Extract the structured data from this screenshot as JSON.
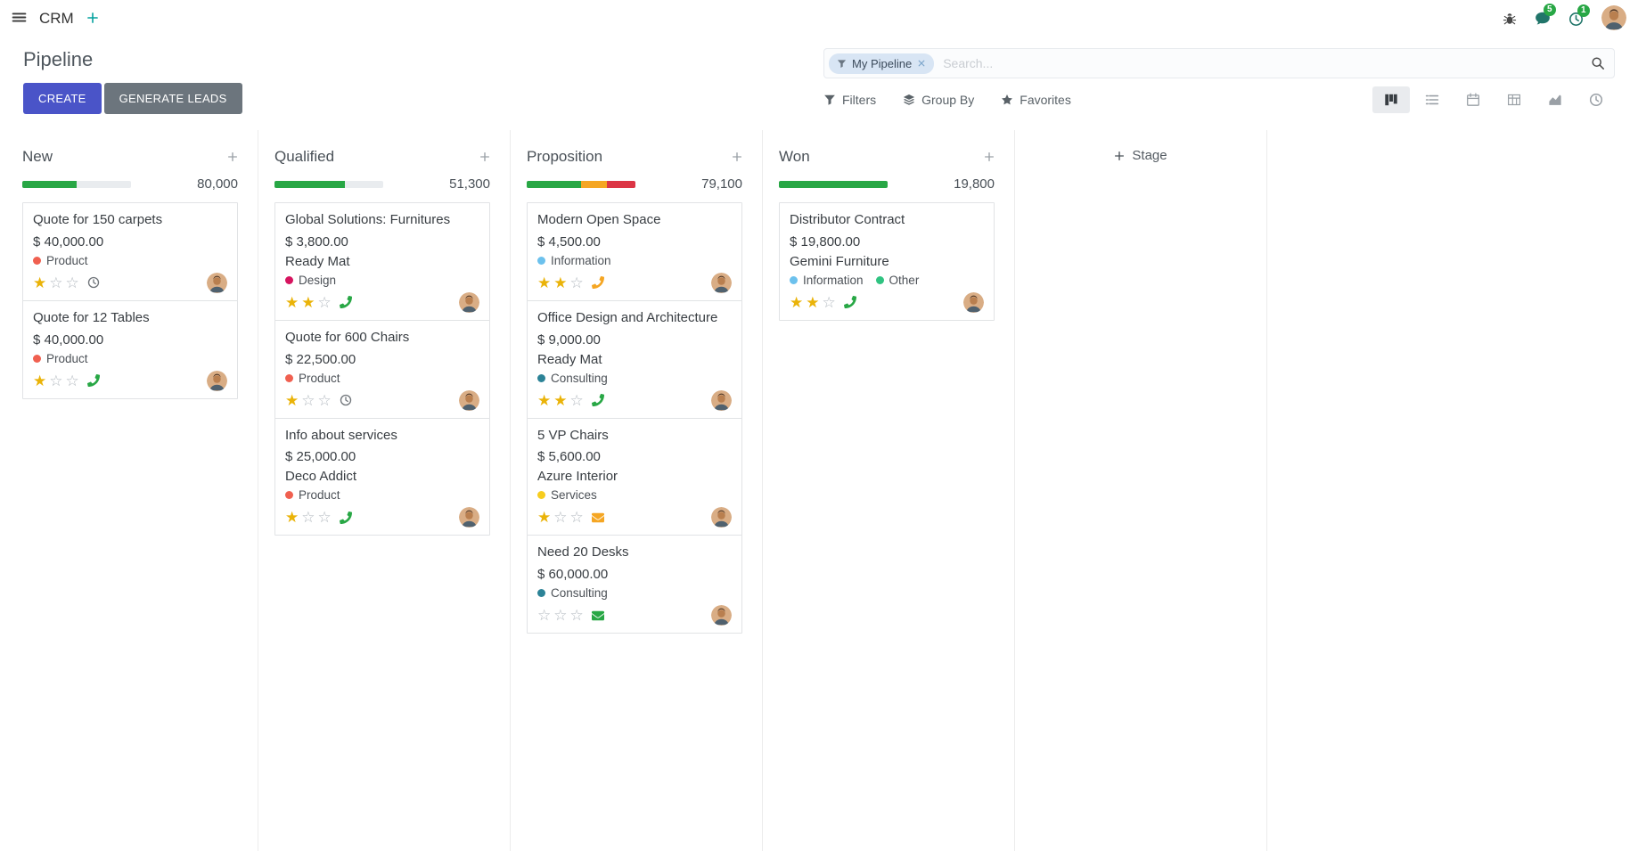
{
  "colors": {
    "primary": "#4a54c8",
    "secondary": "#6c757d",
    "success": "#28a745",
    "warning": "#f5a623",
    "danger": "#dc3545",
    "accent": "#00a09d",
    "star": "#eab308"
  },
  "topbar": {
    "app_name": "CRM",
    "message_badge": "5",
    "activity_badge": "1"
  },
  "control_panel": {
    "title": "Pipeline",
    "create_label": "CREATE",
    "generate_label": "GENERATE LEADS",
    "search_facet": "My Pipeline",
    "search_placeholder": "Search...",
    "filters_label": "Filters",
    "groupby_label": "Group By",
    "favorites_label": "Favorites",
    "view_switcher": [
      "kanban",
      "list",
      "calendar",
      "pivot",
      "graph",
      "activity"
    ],
    "active_view": "kanban"
  },
  "board": {
    "add_column_label": "Stage",
    "columns": [
      {
        "name": "New",
        "total": "80,000",
        "progress": [
          {
            "color": "success",
            "pct": 50
          }
        ],
        "cards": [
          {
            "title": "Quote for 150 carpets",
            "amount": "$ 40,000.00",
            "partner": "",
            "tags": [
              {
                "label": "Product",
                "color": "#f06050"
              }
            ],
            "stars": 1,
            "activity": {
              "icon": "clock",
              "color": "#6f7479"
            }
          },
          {
            "title": "Quote for 12 Tables",
            "amount": "$ 40,000.00",
            "partner": "",
            "tags": [
              {
                "label": "Product",
                "color": "#f06050"
              }
            ],
            "stars": 1,
            "activity": {
              "icon": "phone",
              "color": "#28a745"
            }
          }
        ]
      },
      {
        "name": "Qualified",
        "total": "51,300",
        "progress": [
          {
            "color": "success",
            "pct": 65
          }
        ],
        "cards": [
          {
            "title": "Global Solutions: Furnitures",
            "amount": "$ 3,800.00",
            "partner": "Ready Mat",
            "tags": [
              {
                "label": "Design",
                "color": "#d6145f"
              }
            ],
            "stars": 2,
            "activity": {
              "icon": "phone",
              "color": "#28a745"
            }
          },
          {
            "title": "Quote for 600 Chairs",
            "amount": "$ 22,500.00",
            "partner": "",
            "tags": [
              {
                "label": "Product",
                "color": "#f06050"
              }
            ],
            "stars": 1,
            "activity": {
              "icon": "clock",
              "color": "#6f7479"
            }
          },
          {
            "title": "Info about services",
            "amount": "$ 25,000.00",
            "partner": "Deco Addict",
            "tags": [
              {
                "label": "Product",
                "color": "#f06050"
              }
            ],
            "stars": 1,
            "activity": {
              "icon": "phone",
              "color": "#28a745"
            }
          }
        ]
      },
      {
        "name": "Proposition",
        "total": "79,100",
        "progress": [
          {
            "color": "success",
            "pct": 50
          },
          {
            "color": "warning",
            "pct": 24
          },
          {
            "color": "danger",
            "pct": 26
          }
        ],
        "cards": [
          {
            "title": "Modern Open Space",
            "amount": "$ 4,500.00",
            "partner": "",
            "tags": [
              {
                "label": "Information",
                "color": "#6cc1ed"
              }
            ],
            "stars": 2,
            "activity": {
              "icon": "phone",
              "color": "#f5a623"
            }
          },
          {
            "title": "Office Design and Architecture",
            "amount": "$ 9,000.00",
            "partner": "Ready Mat",
            "tags": [
              {
                "label": "Consulting",
                "color": "#2c8397"
              }
            ],
            "stars": 2,
            "activity": {
              "icon": "phone",
              "color": "#28a745"
            }
          },
          {
            "title": "5 VP Chairs",
            "amount": "$ 5,600.00",
            "partner": "Azure Interior",
            "tags": [
              {
                "label": "Services",
                "color": "#f7cd1f"
              }
            ],
            "stars": 1,
            "activity": {
              "icon": "envelope",
              "color": "#f5a623"
            }
          },
          {
            "title": "Need 20 Desks",
            "amount": "$ 60,000.00",
            "partner": "",
            "tags": [
              {
                "label": "Consulting",
                "color": "#2c8397"
              }
            ],
            "stars": 0,
            "activity": {
              "icon": "envelope",
              "color": "#28a745"
            }
          }
        ]
      },
      {
        "name": "Won",
        "total": "19,800",
        "progress": [
          {
            "color": "success",
            "pct": 100
          }
        ],
        "cards": [
          {
            "title": "Distributor Contract",
            "amount": "$ 19,800.00",
            "partner": "Gemini Furniture",
            "tags": [
              {
                "label": "Information",
                "color": "#6cc1ed"
              },
              {
                "label": "Other",
                "color": "#30c381"
              }
            ],
            "stars": 2,
            "activity": {
              "icon": "phone",
              "color": "#28a745"
            }
          }
        ]
      }
    ]
  }
}
